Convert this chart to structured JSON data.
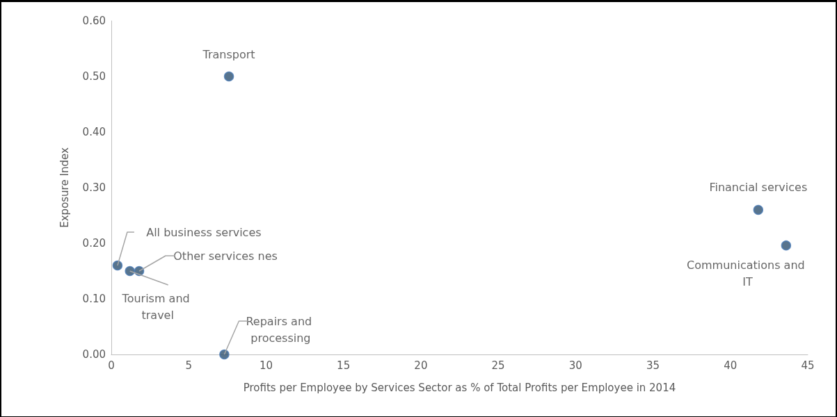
{
  "chart_data": {
    "type": "scatter",
    "xlabel": "Profits per Employee by Services Sector as % of Total Profits per Employee in 2014",
    "ylabel": "Exposure Index",
    "x": [
      0.4,
      1.2,
      1.8,
      7.3,
      7.6,
      41.8,
      43.6
    ],
    "values": [
      0.16,
      0.15,
      0.15,
      0.0,
      0.5,
      0.26,
      0.196
    ],
    "color": "#2e5170",
    "xlim": [
      0,
      45
    ],
    "xticks": [
      0,
      5,
      10,
      15,
      20,
      25,
      30,
      35,
      40,
      45
    ],
    "ylim": [
      0,
      0.6
    ],
    "yticks": [
      {
        "value": 0,
        "label": "0.00"
      },
      {
        "value": 0.1,
        "label": "0.10"
      },
      {
        "value": 0.2,
        "label": "0.20"
      },
      {
        "value": 0.3,
        "label": "0.30"
      },
      {
        "value": 0.4,
        "label": "0.40"
      },
      {
        "value": 0.5,
        "label": "0.50"
      },
      {
        "value": 0.6,
        "label": "0.60"
      }
    ],
    "annotations": [
      {
        "text": "All business services",
        "x": 0.4,
        "y": 0.16
      },
      {
        "text": "Tourism and travel",
        "x": 1.2,
        "y": 0.15
      },
      {
        "text": "Other services nes",
        "x": 1.8,
        "y": 0.15
      },
      {
        "text": "Repairs and processing",
        "x": 7.3,
        "y": 0.0
      },
      {
        "text": "Transport",
        "x": 7.6,
        "y": 0.5
      },
      {
        "text": "Financial services",
        "x": 41.8,
        "y": 0.26
      },
      {
        "text": "Communications and IT",
        "x": 43.6,
        "y": 0.196
      }
    ],
    "grid": false,
    "marker": "circle"
  }
}
